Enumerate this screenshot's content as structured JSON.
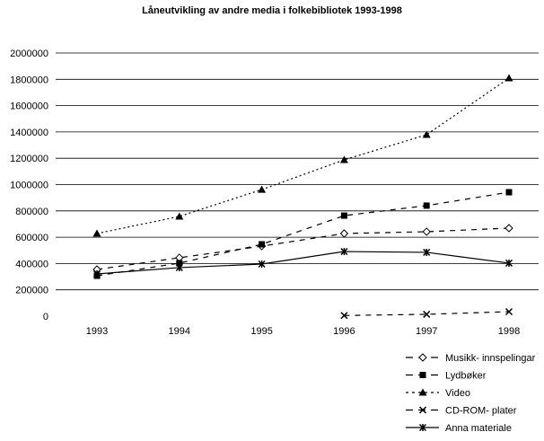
{
  "chart_data": {
    "type": "line",
    "title": "Låneutvikling av andre media i folkebibliotek 1993-1998",
    "xlabel": "",
    "ylabel": "",
    "categories": [
      "1993",
      "1994",
      "1995",
      "1996",
      "1997",
      "1998"
    ],
    "ylim": [
      0,
      2000000
    ],
    "yticks": [
      "0",
      "200000",
      "400000",
      "600000",
      "800000",
      "1000000",
      "1200000",
      "1400000",
      "1600000",
      "1800000",
      "2000000"
    ],
    "grid": true,
    "legend_position": "bottom-right",
    "series": [
      {
        "name": "Musikk- innspelingar",
        "marker": "diamond-open",
        "dash": "6,6",
        "values": [
          355000,
          444000,
          532000,
          628000,
          642000,
          669000
        ]
      },
      {
        "name": "Lydbøker",
        "marker": "square",
        "dash": "6,6",
        "values": [
          307000,
          403000,
          546000,
          764000,
          840000,
          942000
        ]
      },
      {
        "name": "Video",
        "marker": "triangle",
        "dash": "2,3",
        "values": [
          628000,
          758000,
          962000,
          1188000,
          1379000,
          1809000
        ]
      },
      {
        "name": "CD-ROM- plater",
        "marker": "x",
        "dash": "6,6",
        "values": [
          null,
          null,
          null,
          5000,
          14000,
          34000
        ]
      },
      {
        "name": "Anna materiale",
        "marker": "star",
        "dash": "",
        "values": [
          321000,
          369000,
          396000,
          491000,
          485000,
          403000
        ]
      }
    ]
  }
}
